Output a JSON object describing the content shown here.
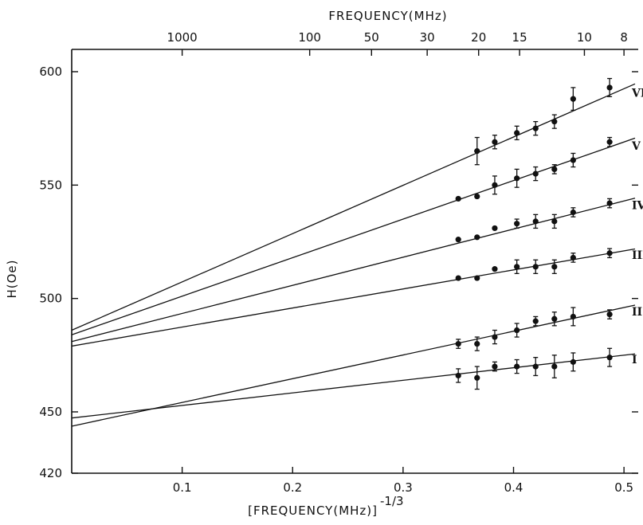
{
  "chart_data": {
    "type": "scatter",
    "title": "",
    "xlabel": "[FREQUENCY(MHz)]",
    "xlabel_exponent": "-1/3",
    "ylabel": "H(Oe)",
    "top_axis_label": "FREQUENCY(MHz)",
    "xlim": [
      0,
      0.51
    ],
    "ylim": [
      420,
      610
    ],
    "x_ticks": [
      0.1,
      0.2,
      0.3,
      0.4,
      0.5
    ],
    "x_tick_labels": [
      "0.1",
      "0.2",
      "0.3",
      "0.4",
      "0.5"
    ],
    "y_ticks": [
      420,
      450,
      500,
      550,
      600
    ],
    "y_tick_labels": [
      "420",
      "450",
      "500",
      "550",
      "600"
    ],
    "top_ticks": [
      1000,
      100,
      50,
      30,
      20,
      15,
      10,
      8
    ],
    "top_tick_labels": [
      "1000",
      "100",
      "50",
      "30",
      "20",
      "15",
      "10",
      "8"
    ],
    "grid": false,
    "series": [
      {
        "name": "I",
        "points": [
          [
            0.35,
            466
          ],
          [
            0.367,
            465
          ],
          [
            0.383,
            470
          ],
          [
            0.403,
            470
          ],
          [
            0.42,
            470
          ],
          [
            0.437,
            470
          ],
          [
            0.454,
            472
          ],
          [
            0.487,
            474
          ]
        ],
        "errors": [
          3,
          5,
          2,
          3,
          4,
          5,
          4,
          4
        ],
        "fit": {
          "intercept": 447,
          "slope": 56
        }
      },
      {
        "name": "II",
        "points": [
          [
            0.35,
            480
          ],
          [
            0.367,
            480
          ],
          [
            0.383,
            483
          ],
          [
            0.403,
            486
          ],
          [
            0.42,
            490
          ],
          [
            0.437,
            491
          ],
          [
            0.454,
            492
          ],
          [
            0.487,
            493
          ]
        ],
        "errors": [
          2,
          3,
          3,
          3,
          2,
          3,
          4,
          2
        ],
        "fit": {
          "intercept": 443,
          "slope": 106
        }
      },
      {
        "name": "III",
        "points": [
          [
            0.35,
            509
          ],
          [
            0.367,
            509
          ],
          [
            0.383,
            513
          ],
          [
            0.403,
            514
          ],
          [
            0.42,
            514
          ],
          [
            0.437,
            514
          ],
          [
            0.454,
            518
          ],
          [
            0.487,
            520
          ]
        ],
        "errors": [
          0,
          0,
          0,
          3,
          3,
          3,
          2,
          2
        ],
        "fit": {
          "intercept": 479,
          "slope": 84
        }
      },
      {
        "name": "IV",
        "points": [
          [
            0.35,
            526
          ],
          [
            0.367,
            527
          ],
          [
            0.383,
            531
          ],
          [
            0.403,
            533
          ],
          [
            0.42,
            534
          ],
          [
            0.437,
            534
          ],
          [
            0.454,
            538
          ],
          [
            0.487,
            542
          ]
        ],
        "errors": [
          0,
          0,
          0,
          2,
          3,
          3,
          2,
          2
        ],
        "fit": {
          "intercept": 481,
          "slope": 124
        }
      },
      {
        "name": "V",
        "points": [
          [
            0.35,
            544
          ],
          [
            0.367,
            545
          ],
          [
            0.383,
            550
          ],
          [
            0.403,
            553
          ],
          [
            0.42,
            555
          ],
          [
            0.437,
            557
          ],
          [
            0.454,
            561
          ],
          [
            0.487,
            569
          ]
        ],
        "errors": [
          0,
          0,
          4,
          4,
          3,
          2,
          3,
          2
        ],
        "fit": {
          "intercept": 484,
          "slope": 170
        }
      },
      {
        "name": "VI",
        "points": [
          [
            0.367,
            565
          ],
          [
            0.383,
            569
          ],
          [
            0.403,
            573
          ],
          [
            0.42,
            575
          ],
          [
            0.437,
            578
          ],
          [
            0.454,
            588
          ],
          [
            0.487,
            593
          ]
        ],
        "errors": [
          6,
          3,
          3,
          3,
          3,
          5,
          4
        ],
        "fit": {
          "intercept": 486,
          "slope": 213
        }
      }
    ]
  }
}
